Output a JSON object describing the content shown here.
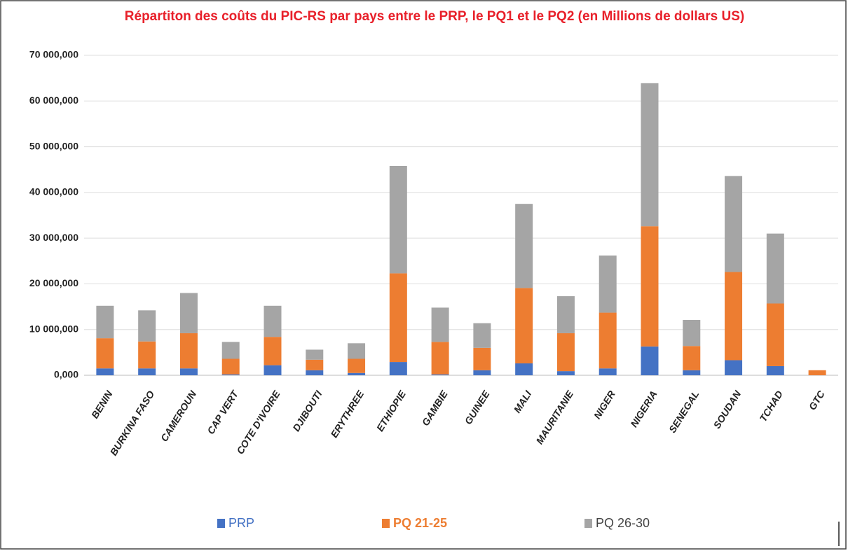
{
  "chart_data": {
    "type": "stacked_bar",
    "title": "Répartiton des coûts du PIC-RS par pays entre le PRP, le PQ1 et le PQ2 (en Millions de dollars US)",
    "categories": [
      "BENIN",
      "BURKINA FASO",
      "CAMEROUN",
      "CAP VERT",
      "COTE D'IVOIRE",
      "DJIBOUTI",
      "ERYTHREE",
      "ETHIOPIE",
      "GAMBIE",
      "GUINEE",
      "MALI",
      "MAURITANIE",
      "NIGER",
      "NIGERIA",
      "SENEGAL",
      "SOUDAN",
      "TCHAD",
      "GTC"
    ],
    "series": [
      {
        "name": "PRP",
        "color": "#4472c4",
        "values": [
          1500,
          1500,
          1500,
          200,
          2200,
          1100,
          500,
          2900,
          200,
          1100,
          2600,
          900,
          1500,
          6300,
          1100,
          3300,
          2000,
          0
        ]
      },
      {
        "name": "PQ 21-25",
        "color": "#ed7d31",
        "values": [
          6600,
          5900,
          7700,
          3400,
          6200,
          2300,
          3100,
          19400,
          7100,
          4900,
          16500,
          8300,
          12200,
          26300,
          5300,
          19300,
          13700,
          1100
        ]
      },
      {
        "name": "PQ 26-30",
        "color": "#a5a5a5",
        "values": [
          7100,
          6800,
          8800,
          3700,
          6800,
          2200,
          3400,
          23500,
          7500,
          5400,
          18400,
          8100,
          12500,
          31300,
          5700,
          21000,
          15300,
          0
        ]
      }
    ],
    "ylim": [
      0,
      70000
    ],
    "yticks": [
      {
        "value": 0,
        "label": "0,000"
      },
      {
        "value": 10000,
        "label": "10 000,000"
      },
      {
        "value": 20000,
        "label": "20 000,000"
      },
      {
        "value": 30000,
        "label": "30 000,000"
      },
      {
        "value": 40000,
        "label": "40 000,000"
      },
      {
        "value": 50000,
        "label": "50 000,000"
      },
      {
        "value": 60000,
        "label": "60 000,000"
      },
      {
        "value": 70000,
        "label": "70 000,000"
      }
    ],
    "grid": true
  }
}
